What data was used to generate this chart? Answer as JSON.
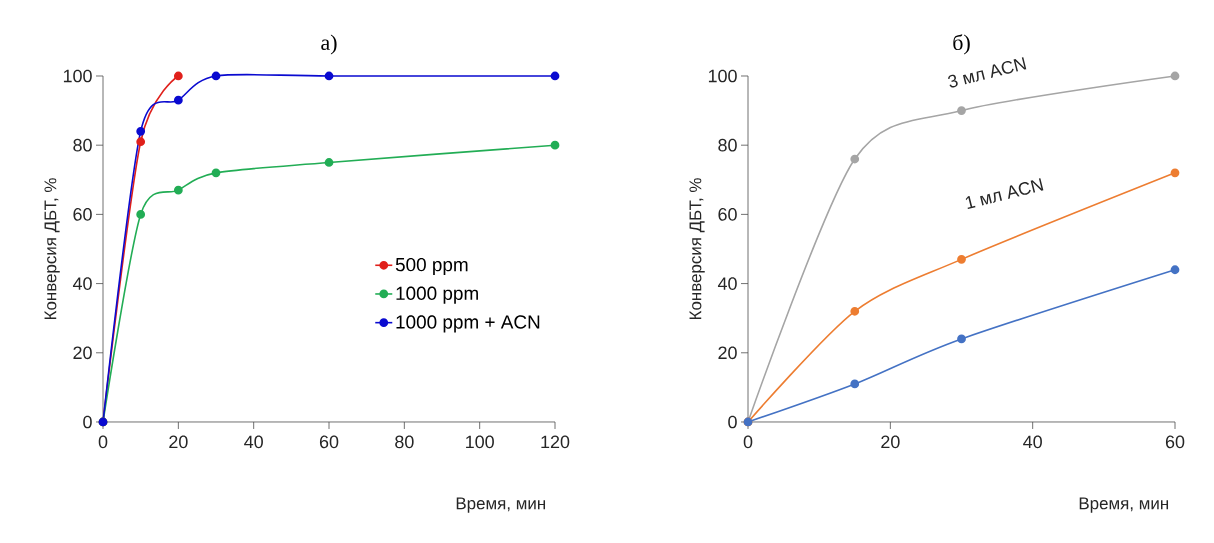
{
  "chart_data": [
    {
      "type": "line",
      "title": "а)",
      "xlabel": "Время, мин",
      "ylabel": "Конверсия  ДБТ, %",
      "xlim": [
        0,
        120
      ],
      "xticks": [
        0,
        20,
        40,
        60,
        80,
        100,
        120
      ],
      "ylim": [
        0,
        100
      ],
      "yticks": [
        0,
        20,
        40,
        60,
        80,
        100
      ],
      "grid": false,
      "legend": "right",
      "marker": "circle",
      "line_style": "solid",
      "series": [
        {
          "name": "500 ppm",
          "color": "#e0201b",
          "x": [
            0,
            10,
            20
          ],
          "values": [
            0,
            81,
            100
          ]
        },
        {
          "name": "1000 ppm",
          "color": "#22ad55",
          "x": [
            0,
            10,
            20,
            30,
            60,
            120
          ],
          "values": [
            0,
            60,
            67,
            72,
            75,
            80
          ]
        },
        {
          "name": "1000 ppm + ACN",
          "color": "#0a0ad0",
          "x": [
            0,
            10,
            20,
            30,
            60,
            120
          ],
          "values": [
            0,
            84,
            93,
            100,
            100,
            100
          ]
        }
      ]
    },
    {
      "type": "line",
      "title": "б)",
      "xlabel": "Время, мин",
      "ylabel": "Конверсия  ДБТ, %",
      "xlim": [
        0,
        60
      ],
      "xticks": [
        0,
        20,
        40,
        60
      ],
      "ylim": [
        0,
        100
      ],
      "yticks": [
        0,
        20,
        40,
        60,
        80,
        100
      ],
      "grid": false,
      "legend": false,
      "marker": "circle",
      "line_style": "solid",
      "annotations": [
        "3 мл ACN",
        "1 мл ACN"
      ],
      "series": [
        {
          "color": "#a5a5a5",
          "x": [
            0,
            15,
            30,
            60
          ],
          "values": [
            0,
            76,
            90,
            100
          ]
        },
        {
          "color": "#ed7d31",
          "x": [
            0,
            15,
            30,
            60
          ],
          "values": [
            0,
            32,
            47,
            72
          ]
        },
        {
          "color": "#4472c4",
          "x": [
            0,
            15,
            30,
            60
          ],
          "values": [
            0,
            11,
            24,
            44
          ]
        }
      ]
    }
  ]
}
